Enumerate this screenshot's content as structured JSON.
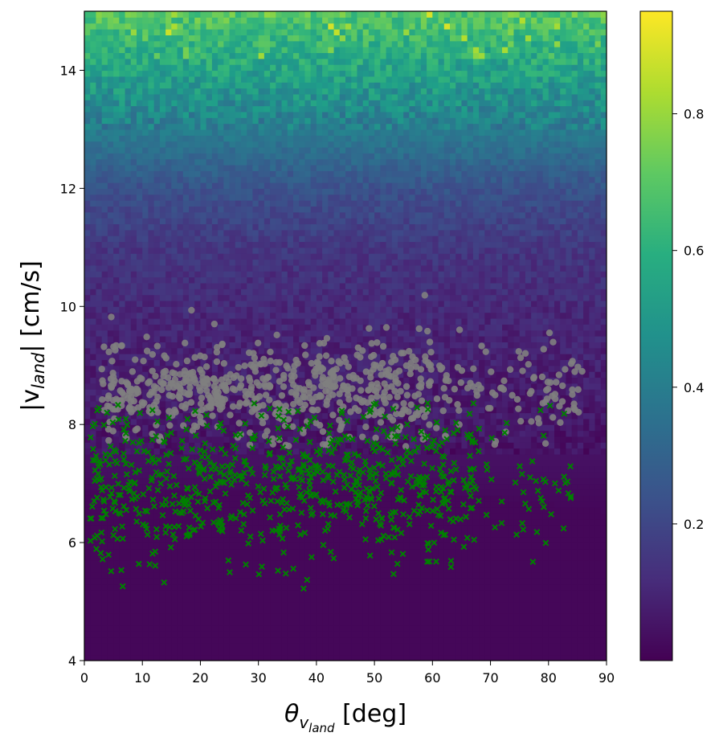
{
  "chart_data": {
    "type": "heatmap",
    "title": "",
    "xlabel": {
      "theta": "θ",
      "sub": "v",
      "subsub": "land",
      "unit": " [deg]"
    },
    "ylabel": {
      "pre": "|v",
      "sub": "land",
      "post": "| [cm/s]"
    },
    "xlim": [
      0,
      90
    ],
    "ylim": [
      4,
      15
    ],
    "xticks": [
      "0",
      "10",
      "20",
      "30",
      "40",
      "50",
      "60",
      "70",
      "80",
      "90"
    ],
    "yticks": [
      "4",
      "6",
      "8",
      "10",
      "12",
      "14"
    ],
    "colorbar": {
      "colormap": "viridis",
      "range": [
        0.0,
        0.95
      ],
      "ticks": [
        "0.2",
        "0.4",
        "0.6",
        "0.8"
      ]
    },
    "heatmap": {
      "x_bins": 90,
      "y_bins": 110,
      "x_range": [
        0,
        90
      ],
      "y_range": [
        4,
        15
      ],
      "description_profile": [
        {
          "v": 4.0,
          "value": 0.01
        },
        {
          "v": 6.7,
          "value": 0.02
        },
        {
          "v": 8.0,
          "value": 0.06
        },
        {
          "v": 9.0,
          "value": 0.08
        },
        {
          "v": 10.0,
          "value": 0.11
        },
        {
          "v": 11.0,
          "value": 0.15
        },
        {
          "v": 12.0,
          "value": 0.24
        },
        {
          "v": 13.0,
          "value": 0.4
        },
        {
          "v": 14.0,
          "value": 0.55
        },
        {
          "v": 15.0,
          "value": 0.7
        }
      ]
    },
    "series": [
      {
        "marker": "circle",
        "color": "#808080",
        "theta_range": [
          1,
          87
        ],
        "v_range": [
          7.6,
          10.3
        ],
        "center_v": 8.6,
        "count": 700
      },
      {
        "marker": "x",
        "color": "#008000",
        "theta_range": [
          1,
          84
        ],
        "v_range": [
          5.0,
          8.4
        ],
        "center_v": 7.0,
        "count": 800
      }
    ]
  }
}
